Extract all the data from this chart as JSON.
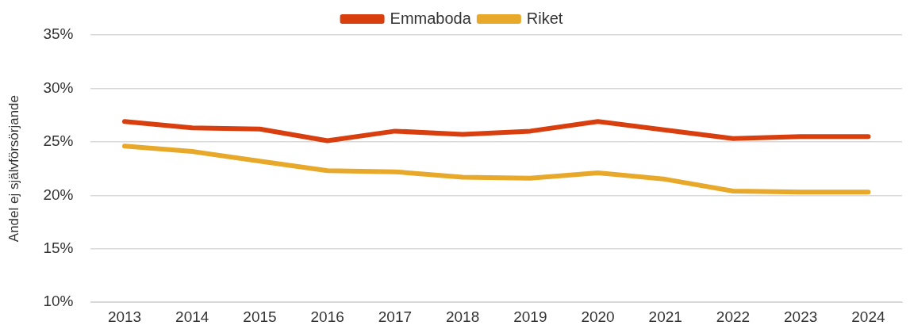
{
  "chart_data": {
    "type": "line",
    "ylabel": "Andel ej självförsörjande",
    "categories": [
      "2013",
      "2014",
      "2015",
      "2016",
      "2017",
      "2018",
      "2019",
      "2020",
      "2021",
      "2022",
      "2023",
      "2024"
    ],
    "series": [
      {
        "name": "Emmaboda",
        "color": "#d83e0e",
        "values": [
          26.9,
          26.3,
          26.2,
          25.1,
          26.0,
          25.7,
          26.0,
          26.9,
          26.1,
          25.3,
          25.5,
          25.5
        ]
      },
      {
        "name": "Riket",
        "color": "#e8a82a",
        "values": [
          24.6,
          24.1,
          23.2,
          22.3,
          22.2,
          21.7,
          21.6,
          22.1,
          21.5,
          20.4,
          20.3,
          20.3
        ]
      }
    ],
    "ylim": [
      10,
      35
    ],
    "yticks": [
      {
        "value": 10,
        "label": "10%"
      },
      {
        "value": 15,
        "label": "15%"
      },
      {
        "value": 20,
        "label": "20%"
      },
      {
        "value": 25,
        "label": "25%"
      },
      {
        "value": 30,
        "label": "30%"
      },
      {
        "value": 35,
        "label": "35%"
      }
    ],
    "grid": "y",
    "legend": "top",
    "marker": "none",
    "line_style": "solid"
  }
}
